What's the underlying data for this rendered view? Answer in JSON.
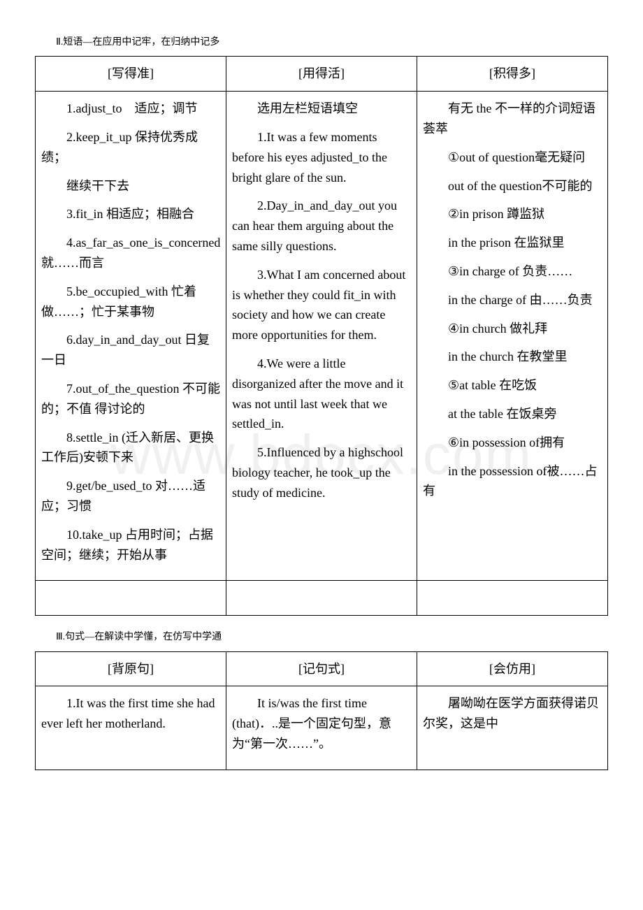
{
  "watermark": "www.bdocx.com",
  "section2": {
    "heading": "Ⅱ.短语—在应用中记牢，在归纳中记多",
    "headers": [
      "[写得准]",
      "[用得活]",
      "[积得多]"
    ],
    "col1": {
      "p1": "1.adjust_to　适应；调节",
      "p2": "2.keep_it_up 保持优秀成绩；",
      "p3": "继续干下去",
      "p4": "3.fit_in 相适应；相融合",
      "p5": "4.as_far_as_one_is_concerned 就……而言",
      "p6": "5.be_occupied_with 忙着做……；忙于某事物",
      "p7": "6.day_in_and_day_out 日复一日",
      "p8": "7.out_of_the_question 不可能的；不值 得讨论的",
      "p9": "8.settle_in (迁入新居、更换工作后)安顿下来",
      "p10": "9.get/be_used_to 对……适应；习惯",
      "p11": "10.take_up 占用时间；占据空间；继续；开始从事"
    },
    "col2": {
      "p0": "选用左栏短语填空",
      "p1": "1.It was a few moments before his eyes adjusted_to the bright glare of the sun.",
      "p2": "2.Day_in_and_day_out you can hear them arguing about the same silly questions.",
      "p3": "3.What I am concerned about is whether they could fit_in with society and how we can create more opportunities for them.",
      "p4": "4.We were a little disorganized after the move and it was not until last week that we settled_in.",
      "p5": "5.Influenced by a highschool biology teacher, he took_up the study of medicine."
    },
    "col3": {
      "p0": "有无 the 不一样的介词短语荟萃",
      "p1": "①out of question毫无疑问",
      "p2": "out of the question不可能的",
      "p3": "②in prison 蹲监狱",
      "p4": "in the prison 在监狱里",
      "p5": "③in charge of 负责……",
      "p6": "in the charge of 由……负责",
      "p7": "④in church 做礼拜",
      "p8": "in the church 在教堂里",
      "p9": "⑤at table 在吃饭",
      "p10": "at the table 在饭桌旁",
      "p11": "⑥in possession of拥有",
      "p12": "in the possession of被……占有"
    }
  },
  "section3": {
    "heading": "Ⅲ.句式—在解读中学懂，在仿写中学通",
    "headers": [
      "[背原句]",
      "[记句式]",
      "[会仿用]"
    ],
    "row1": {
      "c1": "1.It was the first time she had ever left her motherland.",
      "c2": "It is/was the first time (that)．..是一个固定句型，意为“第一次……”。",
      "c3": "屠呦呦在医学方面获得诺贝尔奖，这是中"
    }
  }
}
